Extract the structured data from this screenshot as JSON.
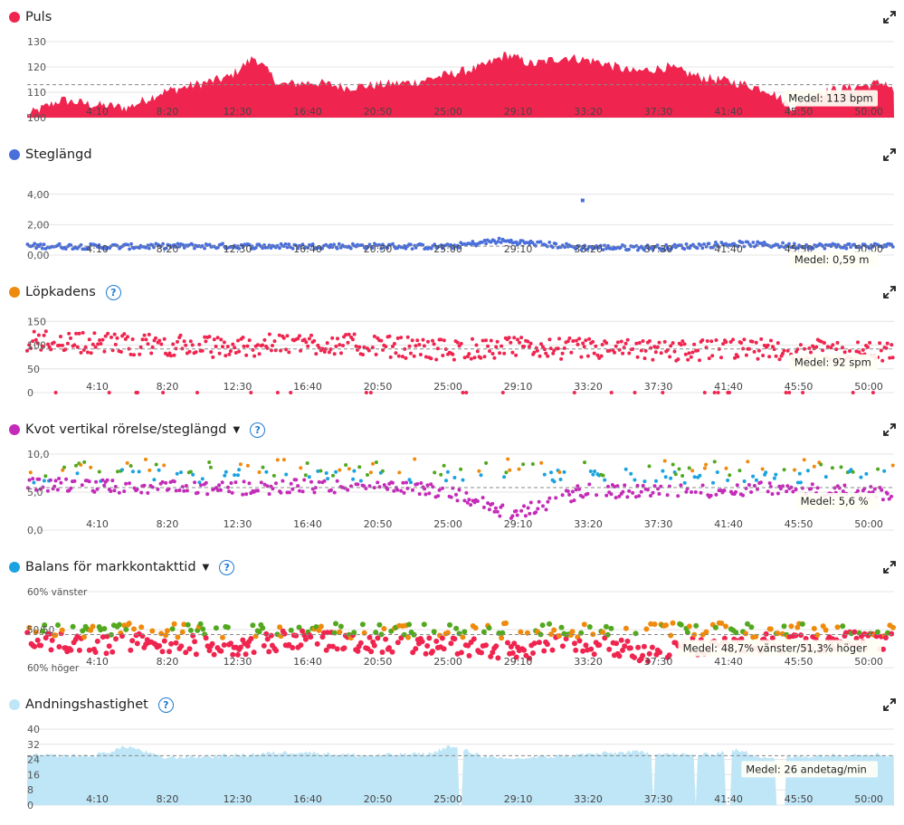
{
  "x_tick_labels": [
    "4:10",
    "8:20",
    "12:30",
    "16:40",
    "20:50",
    "25:00",
    "29:10",
    "33:20",
    "37:30",
    "41:40",
    "45:50",
    "50:00"
  ],
  "colors": {
    "pulse": "#f0254f",
    "stride": "#4a6fdc",
    "cadence": "#f0254f",
    "ratio_purple": "#c42bb8",
    "ratio_blue": "#1aa3e0",
    "ratio_green": "#52a81e",
    "ratio_orange": "#ef8a0c",
    "breathing": "#bfe6f7",
    "help": "#1f7ad1"
  },
  "panels": [
    {
      "title": "Puls",
      "dot_color": "#f0254f",
      "has_help": false,
      "has_caret": false,
      "mean_label": "Medel: 113 bpm",
      "y_tick_labels": [
        "130",
        "120",
        "110",
        "100"
      ]
    },
    {
      "title": "Steglängd",
      "dot_color": "#4a6fdc",
      "has_help": false,
      "has_caret": false,
      "mean_label": "Medel: 0,59 m",
      "y_tick_labels": [
        "4,00",
        "2,00",
        "0,00"
      ]
    },
    {
      "title": "Löpkadens",
      "dot_color": "#ef8a0c",
      "has_help": true,
      "has_caret": false,
      "mean_label": "Medel: 92 spm",
      "y_tick_labels": [
        "150",
        "100",
        "50",
        "0"
      ]
    },
    {
      "title": "Kvot vertikal rörelse/steglängd",
      "dot_color": "#c42bb8",
      "has_help": true,
      "has_caret": true,
      "mean_label": "Medel: 5,6 %",
      "y_tick_labels": [
        "10,0",
        "5,0",
        "0,0"
      ]
    },
    {
      "title": "Balans för markkontakttid",
      "dot_color": "#1aa3e0",
      "has_help": true,
      "has_caret": true,
      "mean_label": "Medel: 48,7% vänster/51,3% höger",
      "y_tick_labels": [
        "60% vänster",
        "50/50",
        "60% höger"
      ]
    },
    {
      "title": "Andningshastighet",
      "dot_color": "#bfe6f7",
      "has_help": true,
      "has_caret": false,
      "mean_label": "Medel: 26 andetag/min",
      "y_tick_labels": [
        "40",
        "32",
        "24",
        "16",
        "8",
        "0"
      ]
    }
  ],
  "chart_data": [
    {
      "type": "area",
      "title": "Puls",
      "x_unit": "min:s",
      "xlim": [
        "0:00",
        "51:30"
      ],
      "ylim": [
        100,
        130
      ],
      "mean": 113,
      "x_minutes": [
        0,
        2,
        4,
        6,
        8,
        10,
        12,
        13.5,
        15,
        17,
        19,
        21,
        23,
        25,
        27,
        28.5,
        30,
        32,
        34,
        36,
        38,
        40,
        42,
        44,
        45.5,
        47,
        49,
        51,
        51.5
      ],
      "y": [
        101,
        107,
        105,
        104,
        110,
        113,
        116,
        124,
        113,
        114,
        112,
        113,
        114,
        117,
        120,
        125,
        121,
        124,
        122,
        118,
        120,
        116,
        114,
        111,
        104,
        110,
        112,
        114,
        110
      ]
    },
    {
      "type": "scatter",
      "title": "Steglängd",
      "ylim": [
        0,
        5
      ],
      "mean": 0.59,
      "note": "nearly all points between 0.4 and 0.9 m, one outlier near 3.6 m at 33:00",
      "x_minutes": [
        0,
        5,
        10,
        15,
        20,
        25,
        28,
        33,
        38,
        42,
        46,
        50
      ],
      "y": [
        0.6,
        0.55,
        0.6,
        0.58,
        0.6,
        0.55,
        0.95,
        0.5,
        0.5,
        0.75,
        0.6,
        0.6
      ]
    },
    {
      "type": "scatter",
      "title": "Löpkadens",
      "ylim": [
        0,
        160
      ],
      "mean": 92,
      "x_minutes": [
        0,
        4,
        8,
        12,
        16,
        20,
        25,
        29,
        33,
        37,
        41,
        45,
        50
      ],
      "y": [
        110,
        105,
        100,
        95,
        105,
        100,
        90,
        95,
        92,
        88,
        90,
        92,
        85
      ]
    },
    {
      "type": "scatter",
      "title": "Kvot vertikal rörelse/steglängd",
      "ylim": [
        0,
        10
      ],
      "mean": 5.6,
      "x_minutes": [
        0,
        4,
        8,
        12,
        16,
        20,
        25,
        29,
        33,
        37,
        41,
        45,
        50
      ],
      "y": [
        6.0,
        5.8,
        5.6,
        5.4,
        5.8,
        5.6,
        5.2,
        2.0,
        5.2,
        5.0,
        5.2,
        5.6,
        4.8
      ]
    },
    {
      "type": "scatter",
      "title": "Balans för markkontakttid",
      "y_unit": "% vänster",
      "ylim": [
        40,
        60
      ],
      "mean": 48.7,
      "x_minutes": [
        0,
        4,
        8,
        12,
        16,
        20,
        25,
        29,
        33,
        37,
        41,
        45,
        50
      ],
      "y": [
        49.5,
        48.7,
        49,
        48,
        50,
        48.7,
        48.5,
        47,
        49,
        46,
        48.7,
        49,
        49.5
      ]
    },
    {
      "type": "area",
      "title": "Andningshastighet",
      "ylim": [
        0,
        40
      ],
      "mean": 26,
      "x_minutes": [
        0,
        4,
        6,
        8,
        12,
        16,
        20,
        24,
        25,
        28,
        32,
        36,
        40,
        42,
        44,
        47,
        50,
        51.5
      ],
      "y": [
        26,
        26,
        31,
        25,
        26,
        28,
        26,
        27,
        31,
        24,
        26,
        28,
        26,
        29,
        25,
        26,
        27,
        26
      ]
    }
  ]
}
